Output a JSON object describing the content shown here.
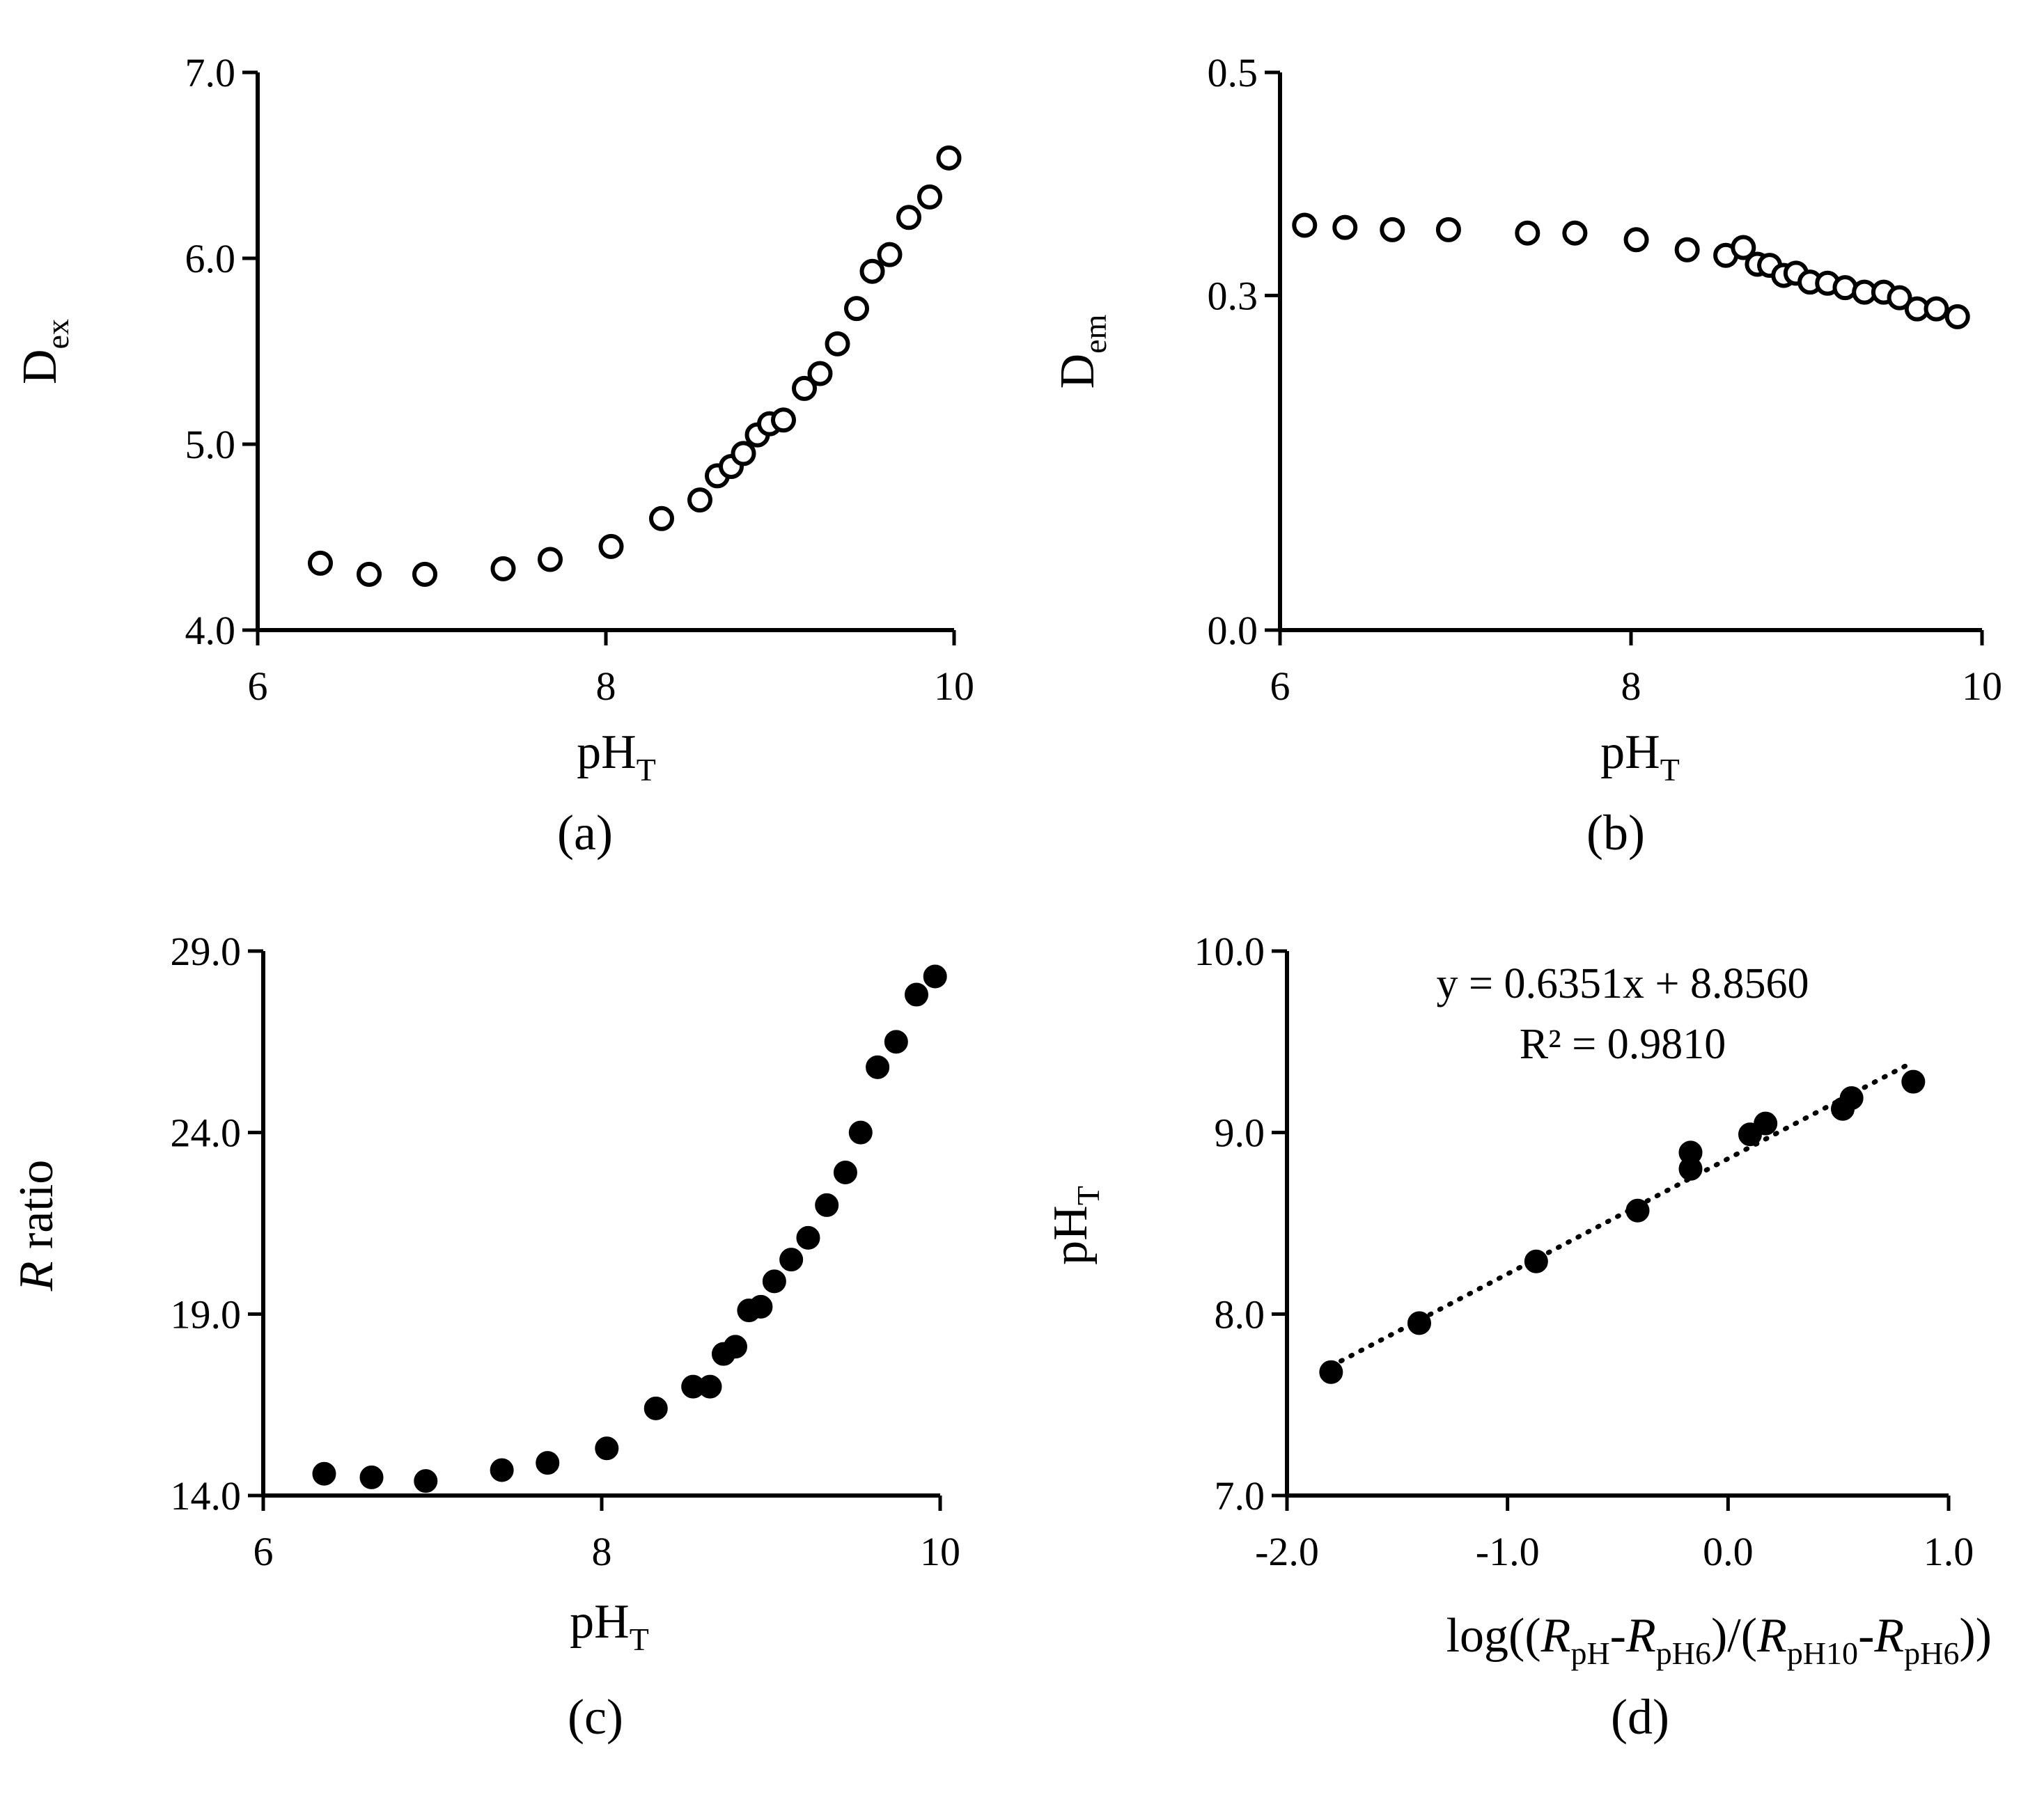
{
  "chart_data": [
    {
      "id": "a",
      "type": "scatter",
      "panel_label": "(a)",
      "marker": "open-circle",
      "ylabel": {
        "main": "D",
        "sub": "ex"
      },
      "xlabel": {
        "main": "pH",
        "sub": "T"
      },
      "xlim": [
        6,
        10
      ],
      "ylim": [
        4.0,
        7.0
      ],
      "xticks": [
        {
          "v": 6,
          "label": "6"
        },
        {
          "v": 8,
          "label": "8"
        },
        {
          "v": 10,
          "label": "10"
        }
      ],
      "yticks": [
        {
          "v": 4.0,
          "label": "4.0"
        },
        {
          "v": 5.0,
          "label": "5.0"
        },
        {
          "v": 6.0,
          "label": "6.0"
        },
        {
          "v": 7.0,
          "label": "7.0"
        }
      ],
      "x": [
        6.36,
        6.64,
        6.96,
        7.41,
        7.68,
        8.03,
        8.32,
        8.54,
        8.64,
        8.72,
        8.79,
        8.87,
        8.94,
        9.02,
        9.14,
        9.23,
        9.33,
        9.44,
        9.53,
        9.63,
        9.74,
        9.86,
        9.97
      ],
      "y": [
        4.36,
        4.3,
        4.3,
        4.33,
        4.38,
        4.45,
        4.6,
        4.7,
        4.83,
        4.88,
        4.95,
        5.05,
        5.11,
        5.13,
        5.3,
        5.38,
        5.54,
        5.73,
        5.93,
        6.02,
        6.22,
        6.33,
        6.54
      ]
    },
    {
      "id": "b",
      "type": "scatter",
      "panel_label": "(b)",
      "marker": "open-circle",
      "ylabel": {
        "main": "D",
        "sub": "em"
      },
      "xlabel": {
        "main": "pH",
        "sub": "T"
      },
      "xlim": [
        6,
        10
      ],
      "ylim": [
        0.0,
        0.5
      ],
      "xticks": [
        {
          "v": 6,
          "label": "6"
        },
        {
          "v": 8,
          "label": "8"
        },
        {
          "v": 10,
          "label": "10"
        }
      ],
      "yticks": [
        {
          "v": 0.0,
          "label": "0.0"
        },
        {
          "v": 0.3,
          "label": "0.3"
        },
        {
          "v": 0.5,
          "label": "0.5"
        }
      ],
      "x": [
        6.14,
        6.37,
        6.64,
        6.96,
        7.41,
        7.68,
        8.03,
        8.32,
        8.54,
        8.64,
        8.72,
        8.79,
        8.87,
        8.94,
        9.02,
        9.12,
        9.22,
        9.33,
        9.44,
        9.53,
        9.63,
        9.74,
        9.86
      ],
      "y": [
        0.363,
        0.361,
        0.359,
        0.359,
        0.356,
        0.356,
        0.35,
        0.341,
        0.336,
        0.343,
        0.328,
        0.327,
        0.318,
        0.32,
        0.312,
        0.311,
        0.307,
        0.303,
        0.303,
        0.298,
        0.288,
        0.288,
        0.281
      ]
    },
    {
      "id": "c",
      "type": "scatter",
      "panel_label": "(c)",
      "marker": "filled-circle",
      "ylabel": {
        "main": "R",
        "rest": " ratio"
      },
      "xlabel": {
        "main": "pH",
        "sub": "T"
      },
      "xlim": [
        6,
        10
      ],
      "ylim": [
        14.0,
        29.0
      ],
      "xticks": [
        {
          "v": 6,
          "label": "6"
        },
        {
          "v": 8,
          "label": "8"
        },
        {
          "v": 10,
          "label": "10"
        }
      ],
      "yticks": [
        {
          "v": 14.0,
          "label": "14.0"
        },
        {
          "v": 19.0,
          "label": "19.0"
        },
        {
          "v": 24.0,
          "label": "24.0"
        },
        {
          "v": 29.0,
          "label": "29.0"
        }
      ],
      "x": [
        6.36,
        6.64,
        6.96,
        7.41,
        7.68,
        8.03,
        8.32,
        8.54,
        8.64,
        8.72,
        8.79,
        8.87,
        8.94,
        9.02,
        9.12,
        9.22,
        9.33,
        9.44,
        9.53,
        9.63,
        9.74,
        9.86,
        9.97
      ],
      "y": [
        14.6,
        14.5,
        14.4,
        14.7,
        14.9,
        15.3,
        16.4,
        17.0,
        17.0,
        17.9,
        18.1,
        19.1,
        19.2,
        19.9,
        20.5,
        21.1,
        22.0,
        22.9,
        24.0,
        25.8,
        26.5,
        27.8,
        28.3
      ]
    },
    {
      "id": "d",
      "type": "scatter",
      "panel_label": "(d)",
      "marker": "filled-circle",
      "ylabel": {
        "main": "pH",
        "sub": "T"
      },
      "xlabel_parts": [
        {
          "t": "log((",
          "style": "normal"
        },
        {
          "t": "R",
          "style": "italic"
        },
        {
          "t": "pH",
          "style": "sub"
        },
        {
          "t": "-",
          "style": "normal"
        },
        {
          "t": "R",
          "style": "italic"
        },
        {
          "t": "pH6",
          "style": "sub"
        },
        {
          "t": ")/(",
          "style": "normal"
        },
        {
          "t": "R",
          "style": "italic"
        },
        {
          "t": "pH10",
          "style": "sub"
        },
        {
          "t": "-",
          "style": "normal"
        },
        {
          "t": "R",
          "style": "italic"
        },
        {
          "t": "pH6",
          "style": "sub"
        },
        {
          "t": "))",
          "style": "normal"
        }
      ],
      "xlim": [
        -2.0,
        1.0
      ],
      "ylim": [
        7.0,
        10.0
      ],
      "xticks": [
        {
          "v": -2.0,
          "label": "-2.0"
        },
        {
          "v": -1.0,
          "label": "-1.0"
        },
        {
          "v": 0.0,
          "label": "0.0"
        },
        {
          "v": 1.0,
          "label": "1.0"
        }
      ],
      "yticks": [
        {
          "v": 7.0,
          "label": "7.0"
        },
        {
          "v": 8.0,
          "label": "8.0"
        },
        {
          "v": 9.0,
          "label": "9.0"
        },
        {
          "v": 10.0,
          "label": "10.0"
        }
      ],
      "x": [
        -1.8,
        -1.4,
        -0.87,
        -0.41,
        -0.17,
        -0.17,
        0.1,
        0.17,
        0.52,
        0.56,
        0.84
      ],
      "y": [
        7.68,
        7.95,
        8.29,
        8.57,
        8.8,
        8.89,
        8.99,
        9.05,
        9.13,
        9.19,
        9.28
      ],
      "trendline": {
        "slope": 0.6351,
        "intercept": 8.856,
        "x_range": [
          -1.8,
          0.84
        ],
        "style": "dotted"
      },
      "equation": "y = 0.6351x + 8.8560",
      "r_squared": "R² = 0.9810"
    }
  ]
}
